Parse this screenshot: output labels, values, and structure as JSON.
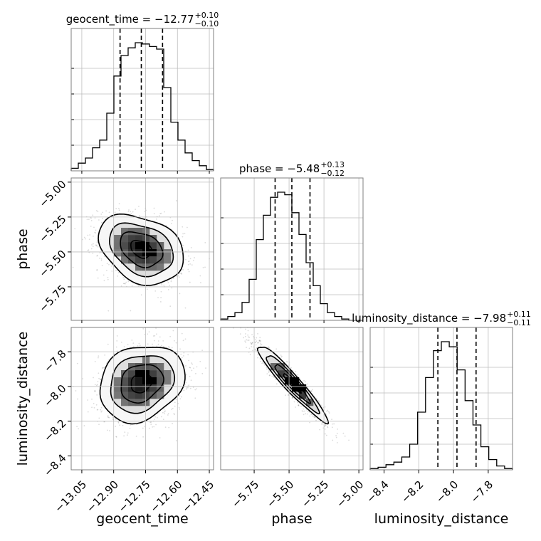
{
  "chart_data": {
    "type": "corner",
    "parameters": [
      "geocent_time",
      "phase",
      "luminosity_distance"
    ],
    "axis_labels": [
      "geocent_time",
      "phase",
      "luminosity_distance"
    ],
    "grid": true,
    "quantiles": [
      0.16,
      0.5,
      0.84
    ],
    "marginals": [
      {
        "name": "geocent_time",
        "title": {
          "prefix": "geocent_time = ",
          "value": "−12.77",
          "plus": "+0.10",
          "minus": "−0.10"
        },
        "median": -12.77,
        "q_low": -12.87,
        "q_high": -12.67,
        "range": [
          -13.1,
          -12.43
        ],
        "ticks": [
          {
            "value": -13.05,
            "label": "−13.05"
          },
          {
            "value": -12.9,
            "label": "−12.90"
          },
          {
            "value": -12.75,
            "label": "−12.75"
          },
          {
            "value": -12.6,
            "label": "−12.60"
          },
          {
            "value": -12.45,
            "label": "−12.45"
          }
        ],
        "hist": [
          0.02,
          0.06,
          0.1,
          0.18,
          0.24,
          0.45,
          0.74,
          0.9,
          0.96,
          1.0,
          0.99,
          0.97,
          0.95,
          0.65,
          0.38,
          0.24,
          0.14,
          0.08,
          0.04,
          0.01
        ]
      },
      {
        "name": "phase",
        "title": {
          "prefix": "phase = ",
          "value": "−5.48",
          "plus": "+0.13",
          "minus": "−0.12"
        },
        "median": -5.48,
        "q_low": -5.6,
        "q_high": -5.35,
        "range": [
          -5.99,
          -4.97
        ],
        "ticks": [
          {
            "value": -5.75,
            "label": "−5.75"
          },
          {
            "value": -5.5,
            "label": "−5.50"
          },
          {
            "value": -5.25,
            "label": "−5.25"
          },
          {
            "value": -5.0,
            "label": "−5.00"
          }
        ],
        "hist": [
          0.01,
          0.03,
          0.06,
          0.14,
          0.32,
          0.63,
          0.82,
          0.96,
          1.0,
          0.98,
          0.84,
          0.67,
          0.45,
          0.27,
          0.13,
          0.06,
          0.03,
          0.01,
          0.0,
          0.0
        ]
      },
      {
        "name": "luminosity_distance",
        "title": {
          "prefix": "luminosity_distance = ",
          "value": "−7.98",
          "plus": "+0.11",
          "minus": "−0.11"
        },
        "median": -7.98,
        "q_low": -8.09,
        "q_high": -7.87,
        "range": [
          -8.48,
          -7.66
        ],
        "ticks": [
          {
            "value": -8.4,
            "label": "−8.4"
          },
          {
            "value": -8.2,
            "label": "−8.2"
          },
          {
            "value": -8.0,
            "label": "−8.0"
          },
          {
            "value": -7.8,
            "label": "−7.8"
          }
        ],
        "hist": [
          0.01,
          0.02,
          0.04,
          0.06,
          0.1,
          0.2,
          0.45,
          0.72,
          0.93,
          1.0,
          0.96,
          0.78,
          0.54,
          0.35,
          0.18,
          0.08,
          0.03,
          0.01
        ]
      }
    ],
    "joint": [
      {
        "x": "geocent_time",
        "y": "phase",
        "mean": [
          -12.77,
          -5.48
        ],
        "sd": [
          0.1,
          0.125
        ],
        "corr": -0.3,
        "peak": [
          -12.74,
          -5.49
        ]
      },
      {
        "x": "geocent_time",
        "y": "luminosity_distance",
        "mean": [
          -12.77,
          -7.98
        ],
        "sd": [
          0.1,
          0.11
        ],
        "corr": 0.2,
        "peak": [
          -12.75,
          -7.97
        ]
      },
      {
        "x": "phase",
        "y": "luminosity_distance",
        "mean": [
          -5.48,
          -7.98
        ],
        "sd": [
          0.125,
          0.11
        ],
        "corr": -0.95,
        "peak": [
          -5.46,
          -7.99
        ]
      }
    ],
    "contour_levels_sigma": [
      0.5,
      1.0,
      1.5,
      2.0
    ]
  }
}
